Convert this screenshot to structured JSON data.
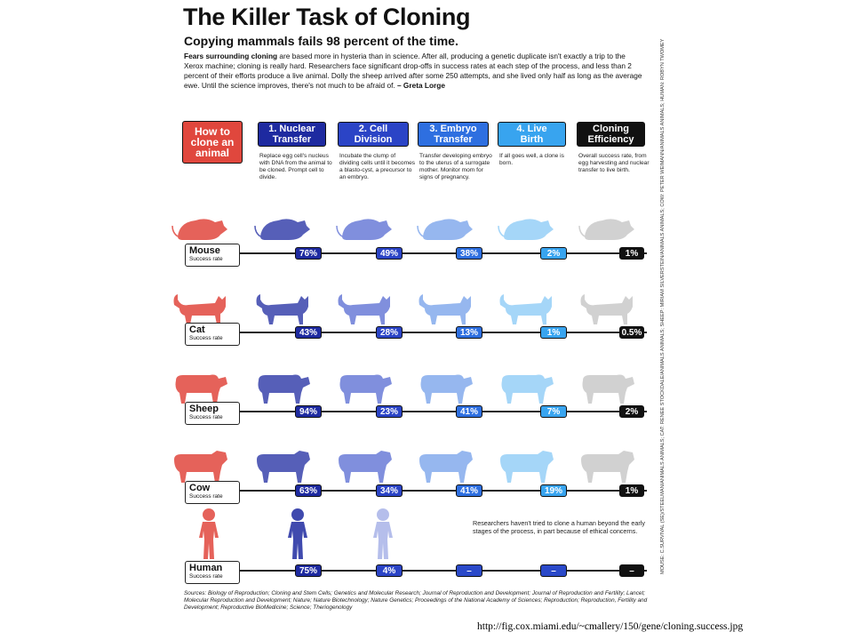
{
  "header": {
    "title": "The Killer Task of Cloning",
    "subtitle": "Copying mammals fails 98 percent of the time.",
    "intro_lead": "Fears surrounding cloning",
    "intro_body": "are based more in hysteria than in science. After all, producing a genetic duplicate isn't exactly a trip to the Xerox machine; cloning is really hard. Researchers face significant drop-offs in success rates at each step of the process, and less than 2 percent of their efforts produce a live animal. Dolly the sheep arrived after some 250 attempts, and she lived only half as long as the average ewe. Until the science improves, there's not much to be afraid of.",
    "intro_author": "– Greta Lorge"
  },
  "colors": {
    "how_to": "#e0473d",
    "nuclear_transfer": "#1e2aa0",
    "cell_division": "#2b44c6",
    "embryo_transfer": "#2e6fe0",
    "live_birth": "#38a4ef",
    "cloning_efficiency": "#111111",
    "human_dash": "#2a49c9"
  },
  "chart_data": {
    "type": "table",
    "title": "The Killer Task of Cloning",
    "columns": [
      "How to clone an animal",
      "1. Nuclear Transfer",
      "2. Cell Division",
      "3. Embryo Transfer",
      "4. Live Birth",
      "Cloning Efficiency"
    ],
    "column_descriptions": [
      "",
      "Replace egg cell's nucleus with DNA from the animal to be cloned. Prompt cell to divide.",
      "Incubate the clump of dividing cells until it becomes a blasto-cyst, a precursor to an embryo.",
      "Transfer developing embryo to the uterus of a surrogate mother. Monitor mom for signs of pregnancy.",
      "If all goes well, a clone is born.",
      "Overall success rate, from egg harvesting and nuclear transfer to live birth."
    ],
    "series": [
      {
        "name": "Mouse",
        "values": [
          76,
          49,
          38,
          2,
          1
        ],
        "labels": [
          "76%",
          "49%",
          "38%",
          "2%",
          "1%"
        ]
      },
      {
        "name": "Cat",
        "values": [
          43,
          28,
          13,
          1,
          0.5
        ],
        "labels": [
          "43%",
          "28%",
          "13%",
          "1%",
          "0.5%"
        ]
      },
      {
        "name": "Sheep",
        "values": [
          94,
          23,
          41,
          7,
          2
        ],
        "labels": [
          "94%",
          "23%",
          "41%",
          "7%",
          "2%"
        ]
      },
      {
        "name": "Cow",
        "values": [
          63,
          34,
          41,
          19,
          1
        ],
        "labels": [
          "63%",
          "34%",
          "41%",
          "19%",
          "1%"
        ]
      },
      {
        "name": "Human",
        "values": [
          75,
          4,
          null,
          null,
          null
        ],
        "labels": [
          "75%",
          "4%",
          "–",
          "–",
          "–"
        ]
      }
    ],
    "row_sublabel": "Success rate",
    "human_note": "Researchers haven't tried to clone a human beyond the early stages of the process, in part because of ethical concerns."
  },
  "stages": [
    {
      "line1": "How to",
      "line2": "clone an",
      "line3": "animal"
    },
    {
      "line1": "1. Nuclear",
      "line2": "Transfer",
      "line3": ""
    },
    {
      "line1": "2. Cell",
      "line2": "Division",
      "line3": ""
    },
    {
      "line1": "3. Embryo",
      "line2": "Transfer",
      "line3": ""
    },
    {
      "line1": "4. Live",
      "line2": "Birth",
      "line3": ""
    },
    {
      "line1": "Cloning",
      "line2": "Efficiency",
      "line3": ""
    }
  ],
  "sources": "Sources: Biology of Reproduction; Cloning and Stem Cells; Genetics and Molecular Research; Journal of Reproduction and Development; Journal of Reproduction and Fertility; Lancet; Molecular Reproduction and Development; Nature; Nature Biotechnology; Nature Genetics; Proceedings of the National Academy of Sciences; Reproduction; Reproduction, Fertility and Development; Reproductive BioMedicine; Science; Theriogenology",
  "credits": "MOUSE: C.SURVIVAL (SE)/STEELMAN/ANIMALS ANIMALS; CAT: RENEE STOCKDALE/ANIMALS ANIMALS; SHEEP: MIRIAM SILVERSTEIN/ANIMALS ANIMALS; COW: PETER WEIMANN/ANIMALS ANIMALS; HUMAN: ROBYN TWOMEY",
  "url": "http://fig.cox.miami.edu/~cmallery/150/gene/cloning.success.jpg"
}
